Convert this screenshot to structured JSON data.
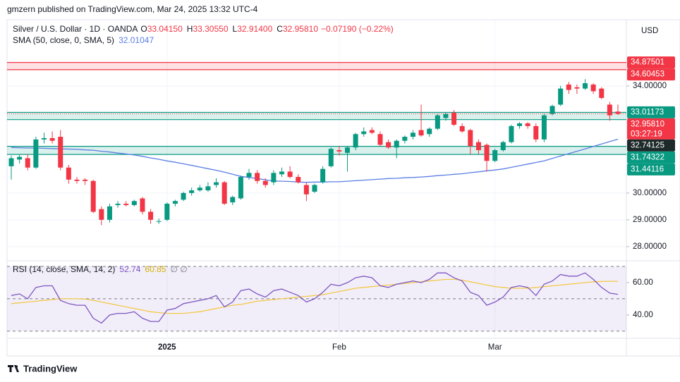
{
  "header": "gmzern published on TradingView.com, Mar 24, 2025 13:32 UTC-4",
  "footer": "TradingView",
  "chart_data": {
    "type": "candlestick",
    "symbol": "Silver / U.S. Dollar · 1D · OANDA",
    "ohlc_legend": [
      {
        "key": "O",
        "value": "33.04150"
      },
      {
        "key": "H",
        "value": "33.30550"
      },
      {
        "key": "L",
        "value": "32.91400"
      },
      {
        "key": "C",
        "value": "32.95810"
      }
    ],
    "change": "−0.07190 (−0.22%)",
    "currency": "USD",
    "categories": [
      null,
      null,
      null,
      null,
      null,
      null,
      null,
      null,
      null,
      null,
      null,
      null,
      null,
      null,
      null,
      null,
      null,
      null,
      null,
      "2025",
      null,
      null,
      null,
      null,
      null,
      null,
      null,
      null,
      null,
      null,
      null,
      null,
      null,
      null,
      null,
      null,
      null,
      null,
      null,
      null,
      "Feb",
      null,
      null,
      null,
      null,
      null,
      null,
      null,
      null,
      null,
      null,
      null,
      null,
      null,
      null,
      null,
      null,
      null,
      null,
      "Mar",
      null,
      null,
      null,
      null,
      null,
      null,
      null,
      null,
      null,
      null,
      null,
      null,
      null,
      null,
      null
    ],
    "open": [
      31.0,
      31.25,
      31.3,
      30.95,
      32.0,
      32.05,
      32.1,
      30.95,
      30.5,
      30.5,
      30.45,
      29.4,
      29.0,
      29.55,
      29.6,
      29.55,
      29.8,
      29.3,
      28.95,
      29.0,
      29.6,
      29.75,
      30.0,
      30.1,
      30.1,
      30.3,
      30.4,
      29.65,
      29.8,
      30.6,
      30.75,
      30.45,
      30.4,
      30.7,
      30.8,
      30.6,
      30.3,
      30.05,
      30.4,
      31.0,
      31.6,
      31.5,
      31.7,
      32.2,
      32.35,
      32.2,
      31.9,
      31.7,
      31.95,
      32.1,
      32.35,
      32.2,
      32.4,
      32.8,
      33.0,
      32.5,
      32.35,
      31.9,
      31.8,
      31.2,
      31.6,
      31.9,
      32.5,
      32.6,
      32.5,
      32.0,
      32.95,
      33.3,
      34.05,
      33.95,
      33.9,
      34.05,
      33.9,
      33.3,
      33.0415
    ],
    "high": [
      31.4,
      31.45,
      31.45,
      32.1,
      32.25,
      32.3,
      32.35,
      31.05,
      30.6,
      30.55,
      30.5,
      29.5,
      29.6,
      29.7,
      29.7,
      29.75,
      29.85,
      29.4,
      29.05,
      29.65,
      29.75,
      30.05,
      30.2,
      30.3,
      30.4,
      30.55,
      30.45,
      29.9,
      30.65,
      30.9,
      30.85,
      30.55,
      30.85,
      30.95,
      31.0,
      30.7,
      30.4,
      30.35,
      31.0,
      31.7,
      31.75,
      31.75,
      32.25,
      32.45,
      32.45,
      32.3,
      32.0,
      32.0,
      32.15,
      32.35,
      33.3,
      32.45,
      32.95,
      33.0,
      33.1,
      32.6,
      32.4,
      32.0,
      31.85,
      31.65,
      31.95,
      32.55,
      32.65,
      32.65,
      32.6,
      32.95,
      33.3,
      34.0,
      34.15,
      34.05,
      34.25,
      34.1,
      33.95,
      33.4,
      33.3055
    ],
    "low": [
      30.5,
      31.1,
      30.85,
      30.9,
      31.85,
      31.85,
      30.85,
      30.35,
      30.35,
      30.3,
      29.25,
      28.8,
      28.9,
      29.45,
      29.5,
      29.5,
      29.2,
      28.85,
      28.85,
      28.95,
      29.5,
      29.7,
      29.9,
      30.05,
      30.05,
      30.2,
      29.55,
      29.55,
      29.75,
      30.5,
      30.35,
      30.2,
      30.3,
      30.6,
      30.55,
      30.35,
      29.7,
      30.0,
      30.35,
      30.95,
      31.4,
      30.8,
      31.6,
      32.1,
      32.2,
      31.75,
      31.65,
      31.3,
      31.85,
      32.0,
      32.1,
      32.1,
      32.35,
      32.7,
      32.5,
      32.25,
      31.45,
      31.45,
      30.8,
      31.15,
      31.55,
      31.85,
      32.4,
      32.4,
      31.9,
      31.9,
      32.9,
      33.25,
      33.7,
      33.7,
      33.85,
      33.7,
      33.5,
      32.7,
      32.914
    ],
    "close": [
      31.3,
      31.35,
      30.95,
      32.0,
      32.05,
      31.95,
      30.95,
      30.5,
      30.45,
      30.45,
      29.3,
      29.0,
      29.5,
      29.6,
      29.55,
      29.7,
      29.3,
      29.0,
      28.95,
      29.6,
      29.7,
      30.0,
      30.1,
      30.2,
      30.25,
      30.4,
      29.6,
      29.85,
      30.6,
      30.75,
      30.45,
      30.3,
      30.75,
      30.8,
      30.6,
      30.4,
      29.95,
      30.3,
      30.9,
      31.65,
      31.55,
      31.7,
      32.2,
      32.3,
      32.25,
      31.8,
      31.7,
      31.95,
      32.1,
      32.25,
      32.15,
      32.4,
      32.9,
      32.95,
      32.55,
      32.3,
      31.75,
      31.6,
      31.2,
      31.6,
      31.9,
      32.5,
      32.6,
      32.5,
      32.0,
      32.9,
      33.25,
      33.9,
      33.85,
      33.9,
      34.1,
      33.8,
      33.55,
      32.9,
      32.9581
    ],
    "up_color": "#089981",
    "down_color": "#f23645",
    "ylim": [
      27.47,
      36.47
    ],
    "yticks": [
      {
        "value": 28,
        "label": "28.00000"
      },
      {
        "value": 29,
        "label": "29.00000"
      },
      {
        "value": 30,
        "label": "30.00000"
      },
      {
        "value": 34,
        "label": "34.00000"
      }
    ],
    "grid": true,
    "sma": {
      "name": "SMA (50, close, 0, SMA, 5)",
      "color": "#5b7ee5",
      "values": [
        31.7,
        31.69,
        31.68,
        31.68,
        31.67,
        31.66,
        31.65,
        31.64,
        31.63,
        31.61,
        31.6,
        31.56,
        31.53,
        31.49,
        31.46,
        31.42,
        31.37,
        31.31,
        31.26,
        31.2,
        31.15,
        31.09,
        31.03,
        30.97,
        30.91,
        30.85,
        30.78,
        30.7,
        30.62,
        30.58,
        30.54,
        30.49,
        30.45,
        30.44,
        30.43,
        30.41,
        30.4,
        30.41,
        30.41,
        30.42,
        30.42,
        30.44,
        30.46,
        30.48,
        30.5,
        30.52,
        30.54,
        30.55,
        30.57,
        30.58,
        30.6,
        30.62,
        30.65,
        30.67,
        30.7,
        30.72,
        30.76,
        30.79,
        30.83,
        30.86,
        30.9,
        30.96,
        31.02,
        31.08,
        31.14,
        31.2,
        31.29,
        31.38,
        31.47,
        31.56,
        31.65,
        31.74,
        31.83,
        31.92,
        32.01047
      ]
    },
    "zones": [
      {
        "color": "#f23645",
        "levels": [
          {
            "value": 34.87501,
            "label": "34.87501"
          },
          {
            "value": 34.60453,
            "label": "34.60453"
          }
        ]
      },
      {
        "color": "#089981",
        "levels": [
          {
            "value": 33.01173,
            "label": "33.01173"
          },
          {
            "value": 32.74125,
            "label": "32.74125",
            "label_color": "#1e2a2a"
          }
        ]
      },
      {
        "color": "#089981",
        "levels": [
          {
            "value": 31.74322,
            "label": "31.74322"
          },
          {
            "value": 31.44116,
            "label": "31.44116"
          }
        ]
      }
    ],
    "last_price_label": "32.95810",
    "countdown": "03:27:19",
    "rsi": {
      "name": "RSI (14, close, SMA, 14, 2)",
      "color": "#7e57c2",
      "ma_color": "#f2c94c",
      "tail": "∅ ∅",
      "values": [
        52,
        53,
        50,
        57,
        58,
        58,
        49,
        47,
        46,
        46,
        38,
        35,
        40,
        41,
        41,
        42,
        38,
        36,
        36,
        43,
        44,
        47,
        48,
        49,
        50,
        52,
        45,
        48,
        55,
        56,
        53,
        51,
        55,
        56,
        54,
        52,
        48,
        50,
        54,
        59,
        58,
        60,
        63,
        64,
        63,
        58,
        57,
        59,
        60,
        61,
        60,
        62,
        66,
        66,
        63,
        61,
        54,
        52,
        46,
        48,
        51,
        57,
        58,
        57,
        52,
        59,
        61,
        65,
        64,
        64,
        66,
        62,
        57,
        53.5,
        52.74
      ],
      "ma": [
        47,
        47.5,
        48,
        48.5,
        49,
        49.5,
        50,
        50,
        50,
        49.8,
        49,
        48,
        47,
        46,
        45,
        44,
        43,
        42,
        41.5,
        41,
        41,
        41,
        41.5,
        42,
        43,
        44,
        45,
        46,
        46.5,
        47.5,
        48.5,
        49,
        49.5,
        50,
        50.5,
        51,
        51.5,
        52,
        52.5,
        53.5,
        54.5,
        55.5,
        56.5,
        57,
        57.5,
        58,
        58.5,
        59,
        59.5,
        60,
        60.5,
        61,
        61.5,
        62,
        62,
        61.5,
        60.5,
        59.5,
        58.5,
        57.5,
        57,
        56.5,
        56.5,
        56.5,
        57,
        57.5,
        58,
        58.5,
        59,
        59.5,
        60,
        60.5,
        60.7,
        60.8,
        60.85
      ],
      "ylim": [
        25.6,
        72.6
      ],
      "yticks": [
        {
          "value": 40,
          "label": "40.00"
        },
        {
          "value": 60,
          "label": "60.00"
        }
      ],
      "levels": [
        30,
        50,
        70
      ]
    }
  }
}
